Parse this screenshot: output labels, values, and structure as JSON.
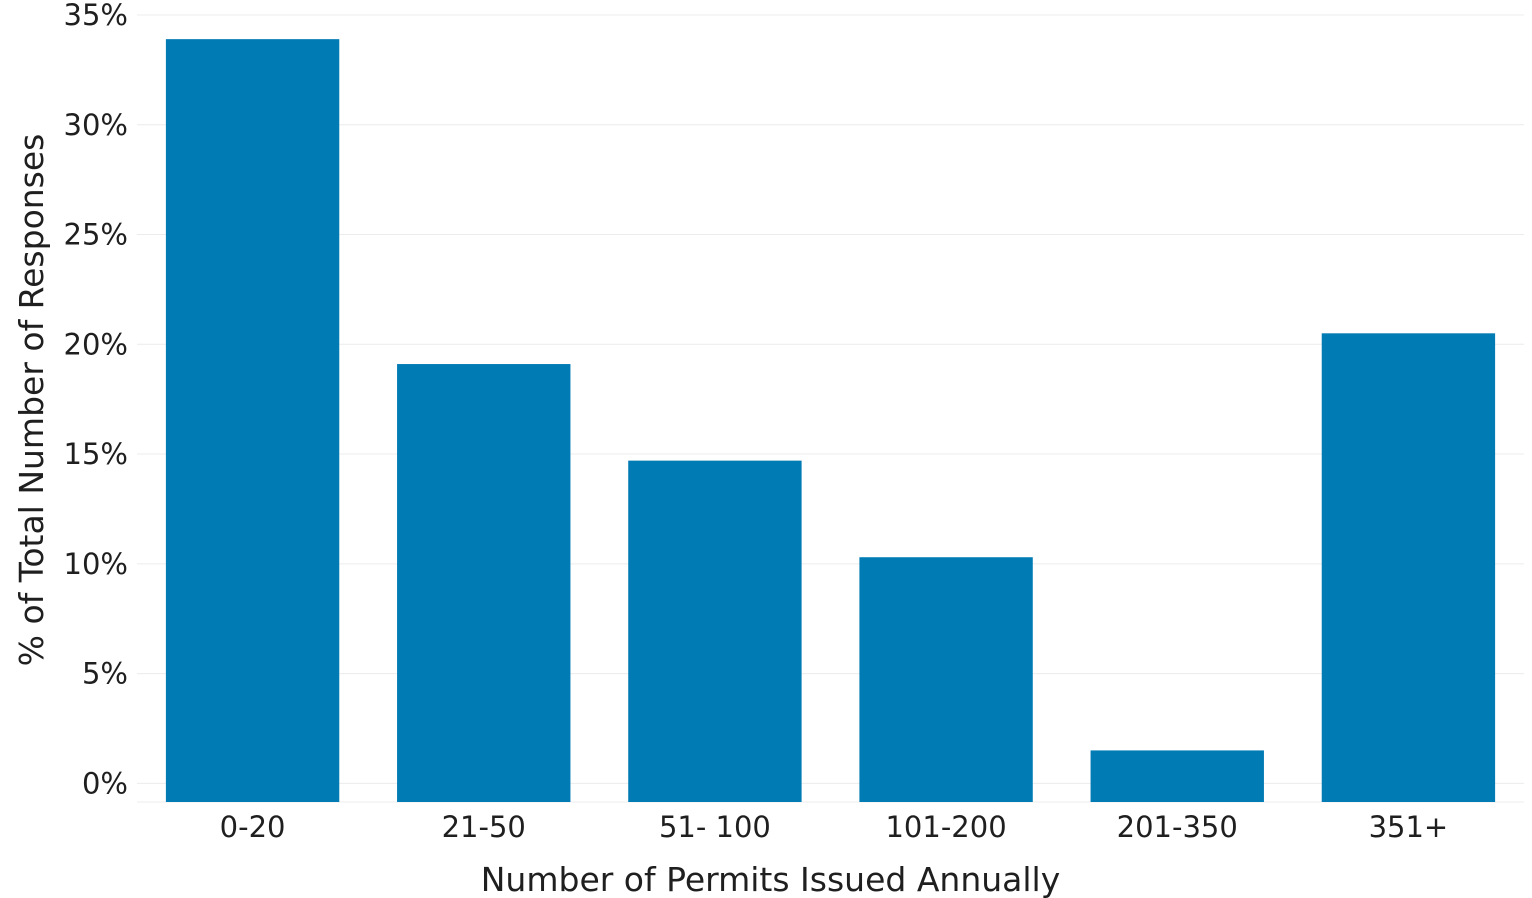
{
  "chart_data": {
    "type": "bar",
    "categories": [
      "0-20",
      "21-50",
      "51- 100",
      "101-200",
      "201-350",
      "351+"
    ],
    "series": [
      {
        "values": [
          33.9,
          19.1,
          14.7,
          10.3,
          1.5,
          20.5
        ],
        "color": "#007bb4"
      }
    ],
    "xlabel": "Number of Permits Issued Annually",
    "ylabel": "% of Total Number of Responses",
    "ylim": [
      -0.85,
      35
    ],
    "yticks": [
      0,
      5,
      10,
      15,
      20,
      25,
      30,
      35
    ],
    "ytick_labels": [
      "0%",
      "5%",
      "10%",
      "15%",
      "20%",
      "25%",
      "30%",
      "35%"
    ],
    "grid": true,
    "legend": "none"
  }
}
